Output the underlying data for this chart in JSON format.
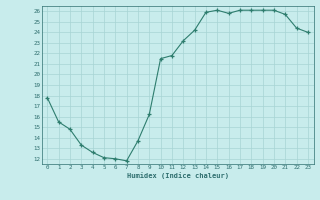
{
  "x": [
    0,
    1,
    2,
    3,
    4,
    5,
    6,
    7,
    8,
    9,
    10,
    11,
    12,
    13,
    14,
    15,
    16,
    17,
    18,
    19,
    20,
    21,
    22,
    23
  ],
  "y": [
    17.8,
    15.5,
    14.8,
    13.3,
    12.6,
    12.1,
    12.0,
    11.8,
    13.7,
    16.2,
    21.5,
    21.8,
    23.2,
    24.2,
    25.9,
    26.1,
    25.8,
    26.1,
    26.1,
    26.1,
    26.1,
    25.7,
    24.4,
    24.0
  ],
  "line_color": "#2e7d6e",
  "bg_color": "#c8ecec",
  "grid_color": "#a8d4d4",
  "xlabel": "Humidex (Indice chaleur)",
  "ylim_min": 11.5,
  "ylim_max": 26.5,
  "xlim_min": -0.5,
  "xlim_max": 23.5,
  "yticks": [
    12,
    13,
    14,
    15,
    16,
    17,
    18,
    19,
    20,
    21,
    22,
    23,
    24,
    25,
    26
  ],
  "xticks": [
    0,
    1,
    2,
    3,
    4,
    5,
    6,
    7,
    8,
    9,
    10,
    11,
    12,
    13,
    14,
    15,
    16,
    17,
    18,
    19,
    20,
    21,
    22,
    23
  ],
  "xtick_labels": [
    "0",
    "1",
    "2",
    "3",
    "4",
    "5",
    "6",
    "7",
    "8",
    "9",
    "10",
    "11",
    "12",
    "13",
    "14",
    "15",
    "16",
    "17",
    "18",
    "19",
    "20",
    "21",
    "22",
    "23"
  ],
  "text_color": "#2e6e6e",
  "marker": "+"
}
